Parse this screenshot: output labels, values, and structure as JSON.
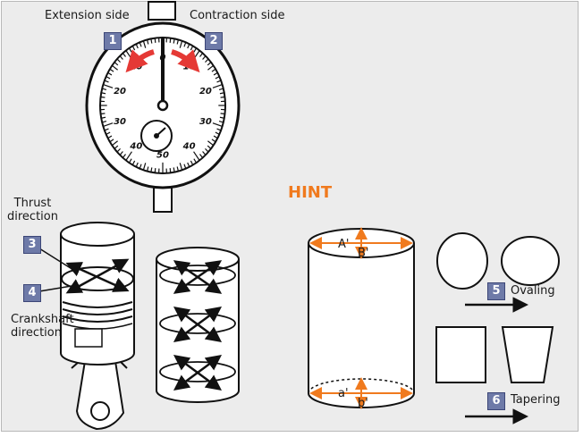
{
  "gauge": {
    "extension_label": "Extension side",
    "contraction_label": "Contraction side",
    "dial_numbers": [
      "0",
      "10",
      "20",
      "30",
      "40",
      "50",
      "40",
      "30",
      "20",
      "10"
    ]
  },
  "steps": [
    {
      "number": "1"
    },
    {
      "number": "2"
    },
    {
      "number": "3"
    },
    {
      "number": "4"
    },
    {
      "number": "5",
      "label": "Ovaling"
    },
    {
      "number": "6",
      "label": "Tapering"
    }
  ],
  "cylinder_labels": {
    "thrust": "Thrust\ndirection",
    "crankshaft": "Crankshaft\ndirection"
  },
  "hint": {
    "title": "HINT",
    "top_a": "A'",
    "top_b": "B'",
    "bottom_a": "a'",
    "bottom_b": "b'"
  },
  "colors": {
    "accent_orange": "#f07a1e",
    "arrow_red": "#e53935",
    "badge": "#6e7aa8"
  }
}
